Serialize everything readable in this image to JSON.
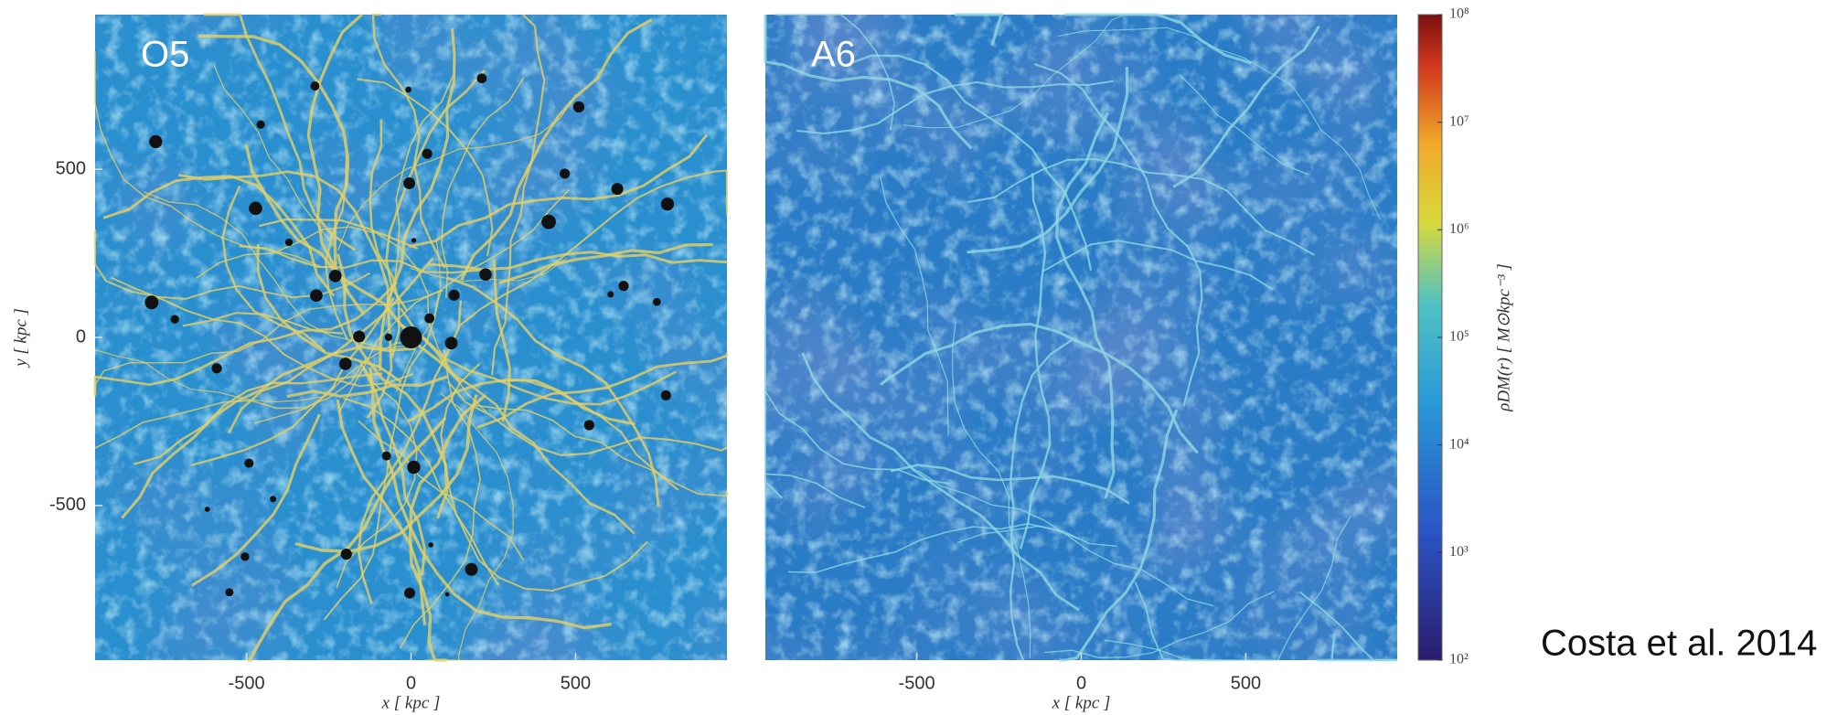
{
  "chart_data": [
    {
      "type": "image",
      "label": "O5",
      "xlabel": "x [ kpc ]",
      "ylabel": "y [ kpc ]",
      "xlim": [
        -960,
        960
      ],
      "ylim": [
        -960,
        960
      ],
      "xticks": [
        -500,
        0,
        500
      ],
      "yticks": [
        -500,
        0,
        500
      ]
    },
    {
      "type": "image",
      "label": "A6",
      "xlabel": "x [ kpc ]",
      "xlim": [
        -960,
        960
      ],
      "ylim": [
        -960,
        960
      ],
      "xticks": [
        -500,
        0,
        500
      ]
    },
    {
      "type": "colorbar",
      "label": "ρDM(r) [ M⊙kpc⁻³ ]",
      "log": true,
      "ylim": [
        100,
        100000000
      ],
      "yticks": [
        {
          "value": 100,
          "label": "10²"
        },
        {
          "value": 1000,
          "label": "10³"
        },
        {
          "value": 10000,
          "label": "10⁴"
        },
        {
          "value": 100000,
          "label": "10⁵"
        },
        {
          "value": 1000000,
          "label": "10⁶"
        },
        {
          "value": 10000000,
          "label": "10⁷"
        },
        {
          "value": 100000000,
          "label": "10⁸"
        }
      ]
    }
  ],
  "caption": "Costa et al. 2014"
}
